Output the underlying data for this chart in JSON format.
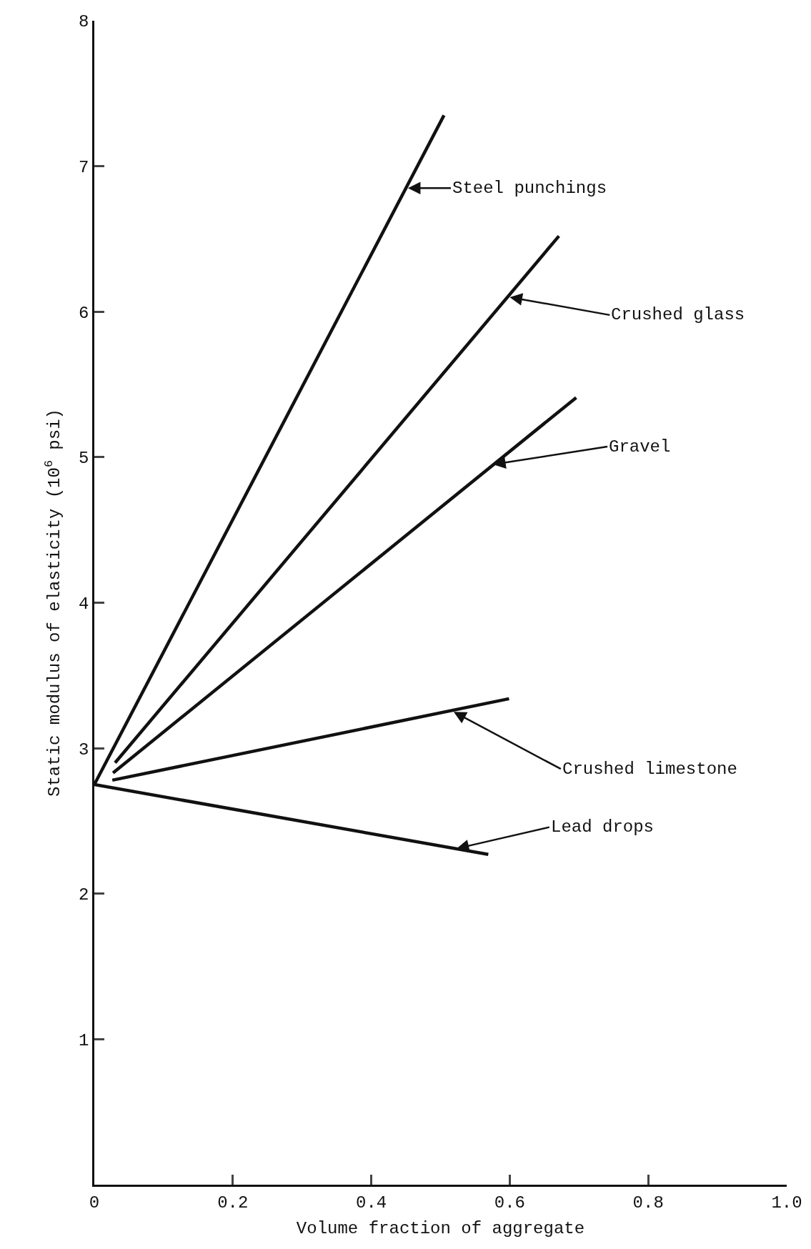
{
  "chart_data": {
    "type": "line",
    "xlabel": "Volume fraction of aggregate",
    "ylabel": "Static modulus of elasticity (10$^{6}$ psi)",
    "xlim": [
      0,
      1.0
    ],
    "xticks": [
      0,
      0.2,
      0.4,
      0.6,
      0.8,
      {
        "value": 1.0,
        "label": "1.0"
      }
    ],
    "ylim": [
      0,
      8
    ],
    "yticks": [
      1,
      2,
      3,
      4,
      5,
      6,
      7,
      8
    ],
    "grid": false,
    "marker": "none",
    "line_style": "solid",
    "series": [
      {
        "color": "#111111",
        "x": [
          0,
          0.505
        ],
        "values": [
          2.75,
          7.35
        ]
      },
      {
        "color": "#111111",
        "x": [
          0.03,
          0.671
        ],
        "values": [
          2.9,
          6.52
        ]
      },
      {
        "color": "#111111",
        "x": [
          0.027,
          0.696
        ],
        "values": [
          2.83,
          5.41
        ]
      },
      {
        "color": "#111111",
        "x": [
          0.026,
          0.599
        ],
        "values": [
          2.78,
          3.34
        ]
      },
      {
        "color": "#111111",
        "x": [
          0,
          0.569
        ],
        "values": [
          2.75,
          2.27
        ]
      }
    ],
    "annotations": [
      {
        "text": "Steel punchings",
        "x": 0.453,
        "y": 6.85
      },
      {
        "text": "Crushed glass",
        "x": 0.6,
        "y": 6.1
      },
      {
        "text": "Gravel",
        "x": 0.576,
        "y": 4.95
      },
      {
        "text": "Crushed limestone",
        "x": 0.519,
        "y": 3.25
      },
      {
        "text": "Lead drops",
        "x": 0.523,
        "y": 2.31
      }
    ]
  }
}
